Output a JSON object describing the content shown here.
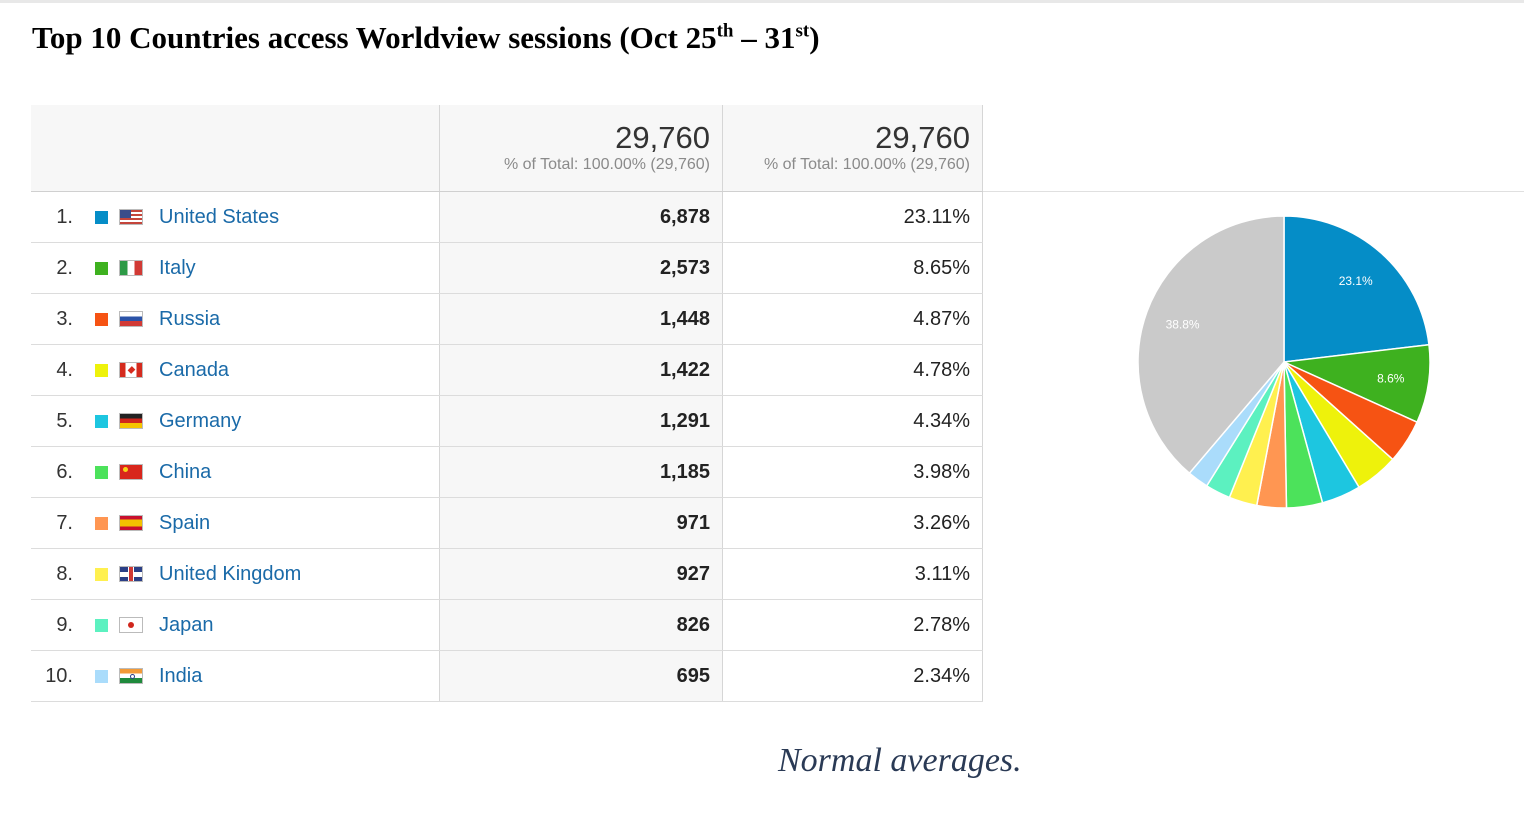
{
  "title": {
    "main": "Top 10 Countries access Worldview sessions (Oct 25",
    "sup1": "th",
    "mid": " – 31",
    "sup2": "st",
    "end": ")"
  },
  "table": {
    "totals": [
      {
        "value": "29,760",
        "sub": "% of Total: 100.00% (29,760)"
      },
      {
        "value": "29,760",
        "sub": "% of Total: 100.00% (29,760)"
      }
    ],
    "rows": [
      {
        "rank": "1.",
        "country": "United States",
        "sessions": "6,878",
        "pct": "23.11%",
        "color": "#058dc7",
        "flag": "us"
      },
      {
        "rank": "2.",
        "country": "Italy",
        "sessions": "2,573",
        "pct": "8.65%",
        "color": "#3eb11f",
        "flag": "it"
      },
      {
        "rank": "3.",
        "country": "Russia",
        "sessions": "1,448",
        "pct": "4.87%",
        "color": "#f65313",
        "flag": "ru"
      },
      {
        "rank": "4.",
        "country": "Canada",
        "sessions": "1,422",
        "pct": "4.78%",
        "color": "#eef20b",
        "flag": "ca"
      },
      {
        "rank": "5.",
        "country": "Germany",
        "sessions": "1,291",
        "pct": "4.34%",
        "color": "#1dc6e0",
        "flag": "de"
      },
      {
        "rank": "6.",
        "country": "China",
        "sessions": "1,185",
        "pct": "3.98%",
        "color": "#4ce25b",
        "flag": "cn"
      },
      {
        "rank": "7.",
        "country": "Spain",
        "sessions": "971",
        "pct": "3.26%",
        "color": "#ff9652",
        "flag": "es"
      },
      {
        "rank": "8.",
        "country": "United Kingdom",
        "sessions": "927",
        "pct": "3.11%",
        "color": "#fff04f",
        "flag": "uk"
      },
      {
        "rank": "9.",
        "country": "Japan",
        "sessions": "826",
        "pct": "2.78%",
        "color": "#5cf1c0",
        "flag": "jp"
      },
      {
        "rank": "10.",
        "country": "India",
        "sessions": "695",
        "pct": "2.34%",
        "color": "#aadcfb",
        "flag": "in"
      }
    ]
  },
  "chart_data": {
    "type": "pie",
    "categories": [
      "United States",
      "Italy",
      "Russia",
      "Canada",
      "Germany",
      "China",
      "Spain",
      "United Kingdom",
      "Japan",
      "India",
      ""
    ],
    "values": [
      23.11,
      8.65,
      4.87,
      4.78,
      4.34,
      3.98,
      3.26,
      3.11,
      2.78,
      2.34,
      38.78
    ],
    "colors": [
      "#058dc7",
      "#3eb11f",
      "#f65313",
      "#eef20b",
      "#1dc6e0",
      "#4ce25b",
      "#ff9652",
      "#fff04f",
      "#5cf1c0",
      "#aadcfb",
      "#cacaca"
    ],
    "slice_labels": [
      "23.1%",
      "8.6%",
      "",
      "",
      "",
      "",
      "",
      "",
      "",
      "",
      "38.8%"
    ]
  },
  "caption": "Normal averages."
}
